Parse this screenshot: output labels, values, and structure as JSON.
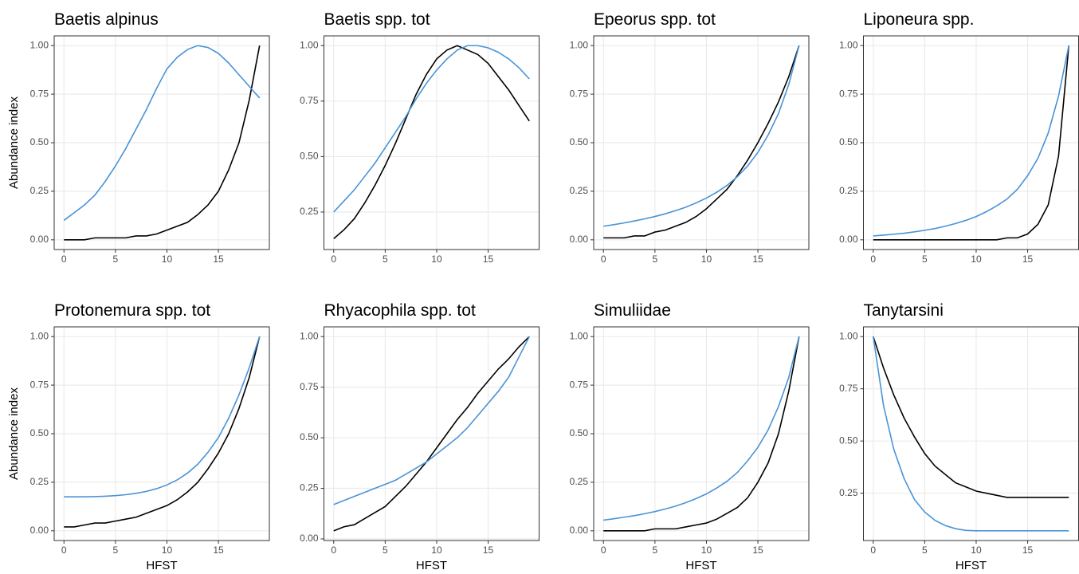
{
  "chart_data": [
    {
      "type": "line",
      "title": "Baetis alpinus",
      "y_label": "Abundance index",
      "x": [
        0,
        1,
        2,
        3,
        4,
        5,
        6,
        7,
        8,
        9,
        10,
        11,
        12,
        13,
        14,
        15,
        16,
        17,
        18,
        19
      ],
      "series": [
        {
          "color": "#000000",
          "values": [
            0,
            0,
            0,
            0.01,
            0.01,
            0.01,
            0.01,
            0.02,
            0.02,
            0.03,
            0.05,
            0.07,
            0.09,
            0.13,
            0.18,
            0.25,
            0.36,
            0.5,
            0.72,
            1.0
          ]
        },
        {
          "color": "#4a93d6",
          "values": [
            0.1,
            0.14,
            0.18,
            0.23,
            0.3,
            0.38,
            0.47,
            0.57,
            0.67,
            0.78,
            0.88,
            0.94,
            0.98,
            1.0,
            0.99,
            0.96,
            0.91,
            0.85,
            0.79,
            0.73
          ]
        }
      ],
      "xlim": [
        -0.95,
        19.95
      ],
      "xticks": [
        0,
        5,
        10,
        15
      ],
      "ylim": [
        -0.05,
        1.05
      ],
      "yticks": [
        {
          "value": 0,
          "label": "0.00"
        },
        {
          "value": 0.25,
          "label": "0.25"
        },
        {
          "value": 0.5,
          "label": "0.50"
        },
        {
          "value": 0.75,
          "label": "0.75"
        },
        {
          "value": 1,
          "label": "1.00"
        }
      ],
      "grid": true
    },
    {
      "type": "line",
      "title": "Baetis spp. tot",
      "x": [
        0,
        1,
        2,
        3,
        4,
        5,
        6,
        7,
        8,
        9,
        10,
        11,
        12,
        13,
        14,
        15,
        16,
        17,
        18,
        19
      ],
      "series": [
        {
          "color": "#000000",
          "values": [
            0.13,
            0.17,
            0.22,
            0.29,
            0.37,
            0.46,
            0.56,
            0.67,
            0.78,
            0.87,
            0.94,
            0.98,
            1.0,
            0.98,
            0.96,
            0.92,
            0.86,
            0.8,
            0.73,
            0.66
          ]
        },
        {
          "color": "#4a93d6",
          "values": [
            0.25,
            0.3,
            0.35,
            0.41,
            0.47,
            0.54,
            0.61,
            0.68,
            0.76,
            0.83,
            0.89,
            0.94,
            0.98,
            1.0,
            1.0,
            0.99,
            0.97,
            0.94,
            0.9,
            0.85
          ]
        }
      ],
      "xlim": [
        -0.95,
        19.95
      ],
      "xticks": [
        0,
        5,
        10,
        15
      ],
      "ylim": [
        0.081,
        1.044
      ],
      "yticks": [
        {
          "value": 0.25,
          "label": "0.25"
        },
        {
          "value": 0.5,
          "label": "0.50"
        },
        {
          "value": 0.75,
          "label": "0.75"
        },
        {
          "value": 1,
          "label": "1.00"
        }
      ],
      "grid": true
    },
    {
      "type": "line",
      "title": "Epeorus spp. tot",
      "x": [
        0,
        1,
        2,
        3,
        4,
        5,
        6,
        7,
        8,
        9,
        10,
        11,
        12,
        13,
        14,
        15,
        16,
        17,
        18,
        19
      ],
      "series": [
        {
          "color": "#000000",
          "values": [
            0.01,
            0.01,
            0.01,
            0.02,
            0.02,
            0.04,
            0.05,
            0.07,
            0.09,
            0.12,
            0.16,
            0.21,
            0.26,
            0.33,
            0.41,
            0.5,
            0.6,
            0.71,
            0.84,
            1.0
          ]
        },
        {
          "color": "#4a93d6",
          "values": [
            0.07,
            0.078,
            0.087,
            0.097,
            0.108,
            0.12,
            0.134,
            0.15,
            0.168,
            0.19,
            0.215,
            0.245,
            0.28,
            0.325,
            0.38,
            0.45,
            0.54,
            0.65,
            0.8,
            1.0
          ]
        }
      ],
      "xlim": [
        -0.95,
        19.95
      ],
      "xticks": [
        0,
        5,
        10,
        15
      ],
      "ylim": [
        -0.05,
        1.05
      ],
      "yticks": [
        {
          "value": 0,
          "label": "0.00"
        },
        {
          "value": 0.25,
          "label": "0.25"
        },
        {
          "value": 0.5,
          "label": "0.50"
        },
        {
          "value": 0.75,
          "label": "0.75"
        },
        {
          "value": 1,
          "label": "1.00"
        }
      ],
      "grid": true
    },
    {
      "type": "line",
      "title": "Liponeura spp.",
      "x": [
        0,
        1,
        2,
        3,
        4,
        5,
        6,
        7,
        8,
        9,
        10,
        11,
        12,
        13,
        14,
        15,
        16,
        17,
        18,
        19
      ],
      "series": [
        {
          "color": "#000000",
          "values": [
            0,
            0,
            0,
            0,
            0,
            0,
            0,
            0,
            0,
            0,
            0,
            0,
            0,
            0.01,
            0.01,
            0.03,
            0.08,
            0.18,
            0.43,
            1.0
          ]
        },
        {
          "color": "#4a93d6",
          "values": [
            0.02,
            0.024,
            0.029,
            0.034,
            0.041,
            0.049,
            0.058,
            0.07,
            0.084,
            0.1,
            0.12,
            0.145,
            0.175,
            0.21,
            0.26,
            0.33,
            0.42,
            0.55,
            0.74,
            1.0
          ]
        }
      ],
      "xlim": [
        -0.95,
        19.95
      ],
      "xticks": [
        0,
        5,
        10,
        15
      ],
      "ylim": [
        -0.05,
        1.05
      ],
      "yticks": [
        {
          "value": 0,
          "label": "0.00"
        },
        {
          "value": 0.25,
          "label": "0.25"
        },
        {
          "value": 0.5,
          "label": "0.50"
        },
        {
          "value": 0.75,
          "label": "0.75"
        },
        {
          "value": 1,
          "label": "1.00"
        }
      ],
      "grid": true
    },
    {
      "type": "line",
      "title": "Protonemura spp. tot",
      "y_label": "Abundance index",
      "x_label": "HFST",
      "x": [
        0,
        1,
        2,
        3,
        4,
        5,
        6,
        7,
        8,
        9,
        10,
        11,
        12,
        13,
        14,
        15,
        16,
        17,
        18,
        19
      ],
      "series": [
        {
          "color": "#000000",
          "values": [
            0.02,
            0.02,
            0.03,
            0.04,
            0.04,
            0.05,
            0.06,
            0.07,
            0.09,
            0.11,
            0.13,
            0.16,
            0.2,
            0.25,
            0.32,
            0.4,
            0.5,
            0.63,
            0.79,
            1.0
          ]
        },
        {
          "color": "#4a93d6",
          "values": [
            0.175,
            0.175,
            0.175,
            0.176,
            0.178,
            0.181,
            0.186,
            0.193,
            0.203,
            0.217,
            0.236,
            0.262,
            0.297,
            0.343,
            0.405,
            0.48,
            0.58,
            0.7,
            0.84,
            1.0
          ]
        }
      ],
      "xlim": [
        -0.95,
        19.95
      ],
      "xticks": [
        0,
        5,
        10,
        15
      ],
      "ylim": [
        -0.05,
        1.05
      ],
      "yticks": [
        {
          "value": 0,
          "label": "0.00"
        },
        {
          "value": 0.25,
          "label": "0.25"
        },
        {
          "value": 0.5,
          "label": "0.50"
        },
        {
          "value": 0.75,
          "label": "0.75"
        },
        {
          "value": 1,
          "label": "1.00"
        }
      ],
      "grid": true
    },
    {
      "type": "line",
      "title": "Rhyacophila spp. tot",
      "x_label": "HFST",
      "x": [
        0,
        1,
        2,
        3,
        4,
        5,
        6,
        7,
        8,
        9,
        10,
        11,
        12,
        13,
        14,
        15,
        16,
        17,
        18,
        19
      ],
      "series": [
        {
          "color": "#000000",
          "values": [
            0.04,
            0.06,
            0.07,
            0.1,
            0.13,
            0.16,
            0.21,
            0.26,
            0.32,
            0.38,
            0.45,
            0.52,
            0.59,
            0.65,
            0.72,
            0.78,
            0.84,
            0.89,
            0.95,
            1.0
          ]
        },
        {
          "color": "#4a93d6",
          "values": [
            0.17,
            0.19,
            0.21,
            0.23,
            0.25,
            0.27,
            0.29,
            0.32,
            0.35,
            0.38,
            0.42,
            0.46,
            0.5,
            0.55,
            0.61,
            0.67,
            0.73,
            0.8,
            0.9,
            1.0
          ]
        }
      ],
      "xlim": [
        -0.95,
        19.95
      ],
      "xticks": [
        0,
        5,
        10,
        15
      ],
      "ylim": [
        -0.008,
        1.048
      ],
      "yticks": [
        {
          "value": 0,
          "label": "0.00"
        },
        {
          "value": 0.25,
          "label": "0.25"
        },
        {
          "value": 0.5,
          "label": "0.50"
        },
        {
          "value": 0.75,
          "label": "0.75"
        },
        {
          "value": 1,
          "label": "1.00"
        }
      ],
      "grid": true
    },
    {
      "type": "line",
      "title": "Simuliidae",
      "x_label": "HFST",
      "x": [
        0,
        1,
        2,
        3,
        4,
        5,
        6,
        7,
        8,
        9,
        10,
        11,
        12,
        13,
        14,
        15,
        16,
        17,
        18,
        19
      ],
      "series": [
        {
          "color": "#000000",
          "values": [
            0,
            0,
            0,
            0,
            0,
            0.01,
            0.01,
            0.01,
            0.02,
            0.03,
            0.04,
            0.06,
            0.09,
            0.12,
            0.17,
            0.25,
            0.35,
            0.5,
            0.72,
            1.0
          ]
        },
        {
          "color": "#4a93d6",
          "values": [
            0.055,
            0.062,
            0.07,
            0.078,
            0.088,
            0.099,
            0.112,
            0.127,
            0.145,
            0.166,
            0.19,
            0.22,
            0.255,
            0.3,
            0.36,
            0.43,
            0.52,
            0.64,
            0.79,
            1.0
          ]
        }
      ],
      "xlim": [
        -0.95,
        19.95
      ],
      "xticks": [
        0,
        5,
        10,
        15
      ],
      "ylim": [
        -0.05,
        1.05
      ],
      "yticks": [
        {
          "value": 0,
          "label": "0.00"
        },
        {
          "value": 0.25,
          "label": "0.25"
        },
        {
          "value": 0.5,
          "label": "0.50"
        },
        {
          "value": 0.75,
          "label": "0.75"
        },
        {
          "value": 1,
          "label": "1.00"
        }
      ],
      "grid": true
    },
    {
      "type": "line",
      "title": "Tanytarsini",
      "x_label": "HFST",
      "x": [
        0,
        1,
        2,
        3,
        4,
        5,
        6,
        7,
        8,
        9,
        10,
        11,
        12,
        13,
        14,
        15,
        16,
        17,
        18,
        19
      ],
      "series": [
        {
          "color": "#000000",
          "values": [
            1.0,
            0.85,
            0.72,
            0.61,
            0.52,
            0.44,
            0.38,
            0.34,
            0.3,
            0.28,
            0.26,
            0.25,
            0.24,
            0.23,
            0.23,
            0.23,
            0.23,
            0.23,
            0.23,
            0.23
          ]
        },
        {
          "color": "#4a93d6",
          "values": [
            1.0,
            0.67,
            0.46,
            0.32,
            0.22,
            0.16,
            0.12,
            0.095,
            0.08,
            0.072,
            0.07,
            0.07,
            0.07,
            0.07,
            0.07,
            0.07,
            0.07,
            0.07,
            0.07,
            0.07
          ]
        }
      ],
      "xlim": [
        -0.95,
        19.95
      ],
      "xticks": [
        0,
        5,
        10,
        15
      ],
      "ylim": [
        0.0235,
        1.0465
      ],
      "yticks": [
        {
          "value": 0.25,
          "label": "0.25"
        },
        {
          "value": 0.5,
          "label": "0.50"
        },
        {
          "value": 0.75,
          "label": "0.75"
        },
        {
          "value": 1,
          "label": "1.00"
        }
      ],
      "grid": true
    }
  ]
}
